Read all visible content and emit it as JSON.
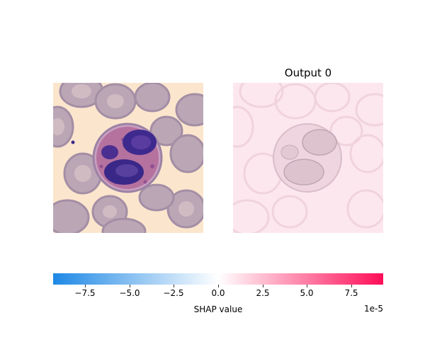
{
  "panels": [
    {
      "title": ""
    },
    {
      "title": "Output 0"
    }
  ],
  "colorbar": {
    "label": "SHAP value",
    "offset_text": "1e-5",
    "min": -9.3,
    "max": 9.3,
    "colors": [
      "#1e88e5",
      "#ffffff",
      "#ff0d57"
    ]
  },
  "chart_data": {
    "type": "heatmap",
    "title": "Output 0",
    "colorbar_label": "SHAP value",
    "colorbar_scale": "1e-5",
    "colorbar_range": [
      -9.3,
      9.3
    ],
    "tick_values": [
      -7.5,
      -5.0,
      -2.5,
      0.0,
      2.5,
      5.0,
      7.5
    ],
    "tick_labels": [
      "−7.5",
      "−5.0",
      "−2.5",
      "0.0",
      "2.5",
      "5.0",
      "7.5"
    ]
  }
}
